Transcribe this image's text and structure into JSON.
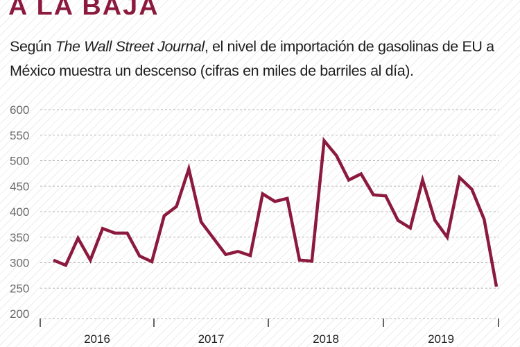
{
  "header": {
    "title": "A LA BAJA",
    "subtitle_pre": "Según ",
    "subtitle_italic": "The Wall Street Journal",
    "subtitle_post": ", el nivel de importación de gasolinas de EU a México muestra un descenso (cifras en miles de barriles al día)."
  },
  "colors": {
    "line": "#8b1a3e",
    "title": "#8b1a3e",
    "text": "#1e1e1e"
  },
  "chart_data": {
    "type": "line",
    "title": "A LA BAJA",
    "xlabel": "",
    "ylabel": "",
    "ylim": [
      200,
      600
    ],
    "yticks": [
      600,
      550,
      500,
      450,
      400,
      350,
      300,
      250,
      200
    ],
    "xtick_labels": [
      "2016",
      "2017",
      "2018",
      "2019"
    ],
    "grid": "horizontal dashed",
    "legend": "none",
    "series": [
      {
        "values": [
          305,
          295,
          348,
          305,
          367,
          358,
          358,
          313,
          302,
          392,
          410,
          484,
          380,
          348,
          316,
          322,
          314,
          435,
          420,
          426,
          305,
          303,
          539,
          510,
          462,
          474,
          433,
          431,
          383,
          368,
          462,
          383,
          350,
          467,
          444,
          385,
          253
        ]
      }
    ]
  }
}
